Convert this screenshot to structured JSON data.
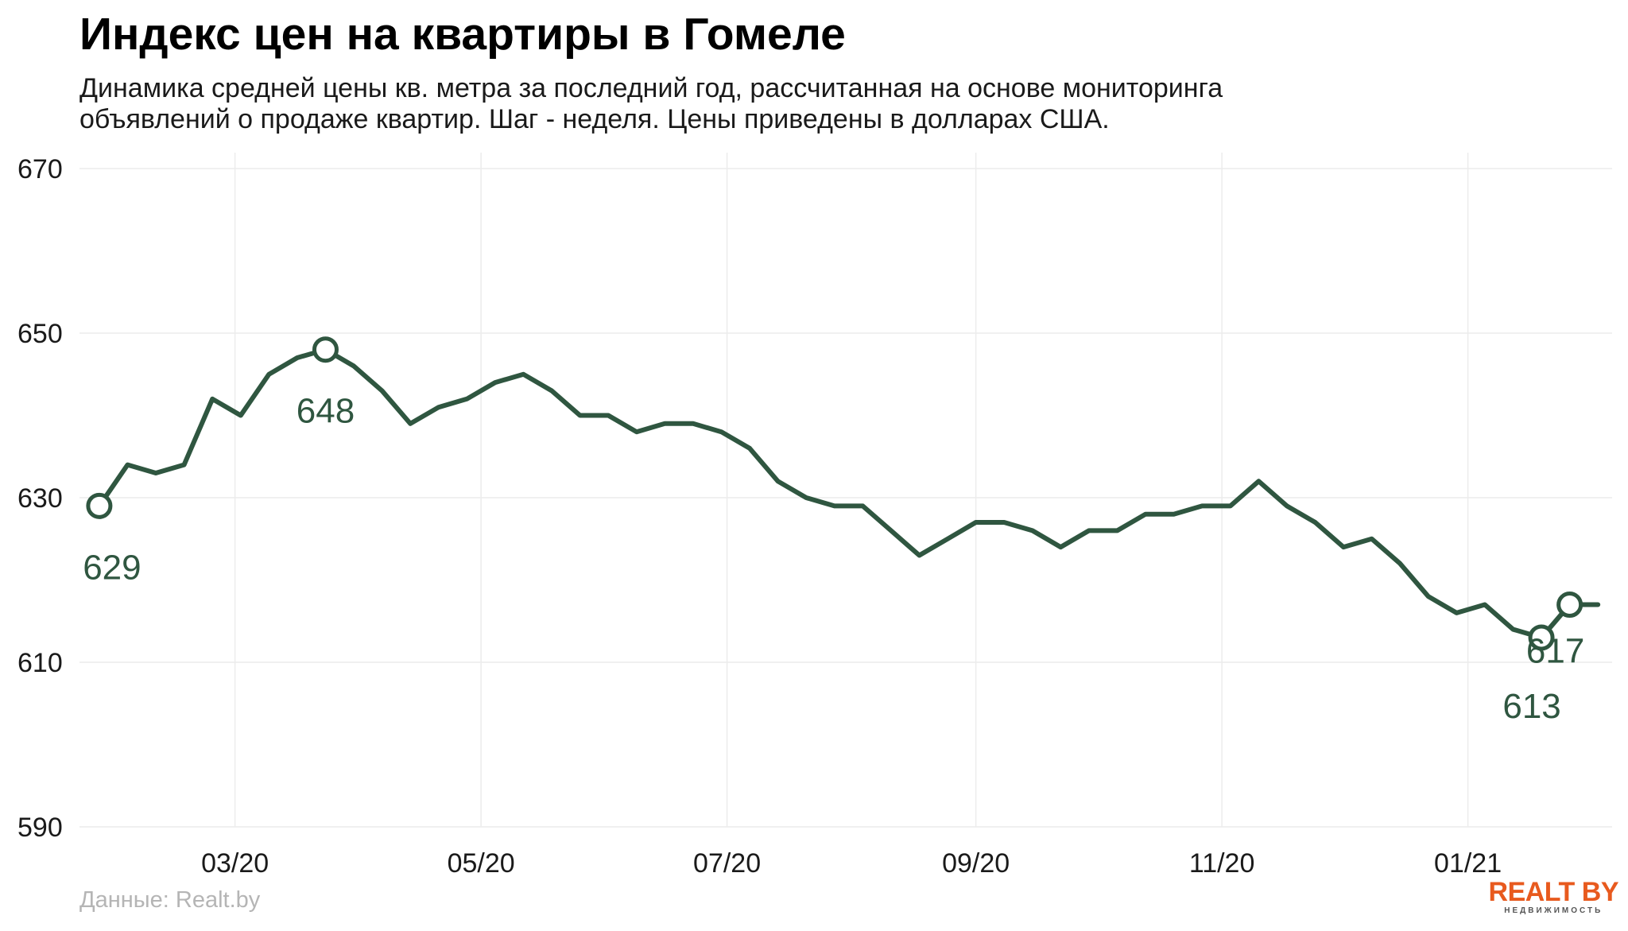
{
  "title": "Индекс цен на квартиры в Гомеле",
  "subtitle_line1": "Динамика средней цены кв. метра за последний год, рассчитанная на основе мониторинга",
  "subtitle_line2": "объявлений о продаже квартир. Шаг - неделя. Цены приведены в долларах США.",
  "source": "Данные: Realt.by",
  "logo": {
    "main": "REALT BY",
    "sub": "НЕДВИЖИМОСТЬ"
  },
  "colors": {
    "line": "#2f5640",
    "grid": "#ececec",
    "logo": "#e85a1e"
  },
  "chart_data": {
    "type": "line",
    "title": "Индекс цен на квартиры в Гомеле",
    "xlabel": "",
    "ylabel": "",
    "ylim": [
      590,
      670
    ],
    "y_ticks": [
      590,
      610,
      630,
      650,
      670
    ],
    "x_ticks": [
      "03/20",
      "05/20",
      "07/20",
      "09/20",
      "11/20",
      "01/21"
    ],
    "x_tick_week_index": [
      4.8,
      13.5,
      22.2,
      31.0,
      39.7,
      48.4
    ],
    "grid": true,
    "legend": "none",
    "x": [
      0,
      1,
      2,
      3,
      4,
      5,
      6,
      7,
      8,
      9,
      10,
      11,
      12,
      13,
      14,
      15,
      16,
      17,
      18,
      19,
      20,
      21,
      22,
      23,
      24,
      25,
      26,
      27,
      28,
      29,
      30,
      31,
      32,
      33,
      34,
      35,
      36,
      37,
      38,
      39,
      40,
      41,
      42,
      43,
      44,
      45,
      46,
      47,
      48,
      49,
      50,
      51,
      52,
      53
    ],
    "values": [
      629,
      634,
      633,
      634,
      642,
      640,
      645,
      647,
      648,
      646,
      643,
      639,
      641,
      642,
      644,
      645,
      643,
      640,
      640,
      638,
      639,
      639,
      638,
      636,
      632,
      630,
      629,
      629,
      626,
      623,
      625,
      627,
      627,
      626,
      624,
      626,
      626,
      628,
      628,
      629,
      629,
      632,
      629,
      627,
      624,
      625,
      622,
      618,
      616,
      617,
      614,
      613,
      617,
      617
    ],
    "annotations": [
      {
        "index": 0,
        "text": "629",
        "pos": "below"
      },
      {
        "index": 8,
        "text": "648",
        "pos": "below"
      },
      {
        "index": 51,
        "text": "613",
        "pos": "below"
      },
      {
        "index": 52,
        "text": "617",
        "pos": "below"
      }
    ]
  }
}
